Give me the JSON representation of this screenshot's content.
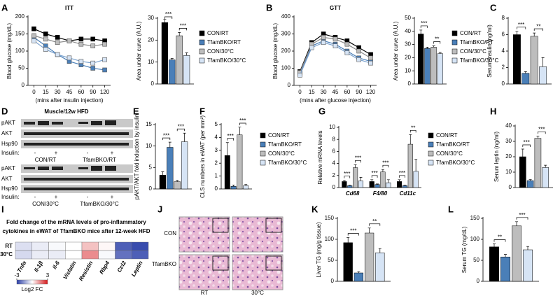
{
  "panels": [
    "A",
    "B",
    "C",
    "D",
    "E",
    "F",
    "G",
    "H",
    "I",
    "J",
    "K",
    "L"
  ],
  "chart_data": [
    {
      "type": "line",
      "title": "ITT",
      "ylabel": "Blood glucose (mg/dL)",
      "xlabel": "(mins after insulin injection)",
      "categories": [
        "0",
        "15",
        "30",
        "45",
        "60",
        "90",
        "120"
      ],
      "ylim": [
        0,
        200
      ],
      "yticks": [
        0,
        50,
        100,
        150,
        200
      ],
      "series": [
        {
          "name": "CON/RT",
          "color": "#000000",
          "values": [
            165,
            150,
            140,
            130,
            135,
            135,
            130
          ]
        },
        {
          "name": "TfamBKO/RT",
          "color": "#4a7fb8",
          "values": [
            140,
            115,
            90,
            70,
            60,
            50,
            45
          ]
        },
        {
          "name": "CON/30°C",
          "color": "#bdbdbd",
          "values": [
            145,
            135,
            125,
            130,
            120,
            115,
            120
          ]
        },
        {
          "name": "TfamBKO/30°C",
          "color": "#d6e4f5",
          "values": [
            130,
            105,
            90,
            80,
            70,
            65,
            75
          ]
        }
      ]
    },
    {
      "type": "bar",
      "ylabel": "Area under curve (A.U.)",
      "ylim": [
        0,
        30
      ],
      "yticks": [
        0,
        10,
        20,
        30
      ],
      "legend": true,
      "annotations": [
        "***",
        "***"
      ],
      "series": [
        {
          "name": "CON/RT",
          "color": "#000000",
          "values": [
            28
          ],
          "errors": [
            1.5
          ]
        },
        {
          "name": "TfamBKO/RT",
          "color": "#4a7fb8",
          "values": [
            11
          ],
          "errors": [
            0.6
          ]
        },
        {
          "name": "CON/30°C",
          "color": "#bdbdbd",
          "values": [
            22
          ],
          "errors": [
            1.5
          ]
        },
        {
          "name": "TfamBKO/30°C",
          "color": "#d6e4f5",
          "values": [
            13
          ],
          "errors": [
            1.2
          ]
        }
      ]
    },
    {
      "type": "line",
      "title": "GTT",
      "ylabel": "Blood glucose (mg/dL)",
      "xlabel": "(mins after glucose injection)",
      "categories": [
        "0",
        "15",
        "30",
        "45",
        "60",
        "90",
        "120"
      ],
      "ylim": [
        0,
        400
      ],
      "yticks": [
        0,
        100,
        200,
        300,
        400
      ],
      "series": [
        {
          "name": "CON/RT",
          "color": "#000000",
          "values": [
            80,
            250,
            300,
            280,
            260,
            220,
            180
          ]
        },
        {
          "name": "TfamBKO/RT",
          "color": "#4a7fb8",
          "values": [
            70,
            230,
            260,
            240,
            200,
            160,
            140
          ]
        },
        {
          "name": "CON/30°C",
          "color": "#bdbdbd",
          "values": [
            75,
            240,
            280,
            270,
            240,
            200,
            160
          ]
        },
        {
          "name": "TfamBKO/30°C",
          "color": "#d6e4f5",
          "values": [
            60,
            220,
            250,
            230,
            190,
            150,
            130
          ]
        }
      ]
    },
    {
      "type": "bar",
      "ylabel": "Area under curve (A.U.)",
      "ylim": [
        0,
        50
      ],
      "yticks": [
        0,
        10,
        20,
        30,
        40,
        50
      ],
      "legend": true,
      "annotations": [
        "***",
        "**"
      ],
      "series": [
        {
          "name": "CON/RT",
          "color": "#000000",
          "values": [
            38
          ],
          "errors": [
            3
          ]
        },
        {
          "name": "TfamBKO/RT",
          "color": "#4a7fb8",
          "values": [
            27
          ],
          "errors": [
            1
          ]
        },
        {
          "name": "CON/30°C",
          "color": "#bdbdbd",
          "values": [
            28
          ],
          "errors": [
            1
          ]
        },
        {
          "name": "TfamBKO/30°C",
          "color": "#d6e4f5",
          "values": [
            23
          ],
          "errors": [
            1
          ]
        }
      ]
    },
    {
      "type": "bar",
      "ylabel": "Serum insulin (ng/ml)",
      "ylim": [
        0,
        8
      ],
      "yticks": [
        0,
        2,
        4,
        6,
        8
      ],
      "legend": false,
      "annotations": [
        "***",
        "**"
      ],
      "series": [
        {
          "name": "CON/RT",
          "color": "#000000",
          "values": [
            6
          ],
          "errors": [
            0.4
          ]
        },
        {
          "name": "TfamBKO/RT",
          "color": "#4a7fb8",
          "values": [
            1.3
          ],
          "errors": [
            0.2
          ]
        },
        {
          "name": "CON/30°C",
          "color": "#bdbdbd",
          "values": [
            5.8
          ],
          "errors": [
            0.4
          ]
        },
        {
          "name": "TfamBKO/30°C",
          "color": "#d6e4f5",
          "values": [
            2.1
          ],
          "errors": [
            1.1
          ]
        }
      ]
    },
    {
      "type": "bar",
      "ylabel": "pAKT/AKT fold induction by insulin",
      "ylim": [
        0,
        15
      ],
      "yticks": [
        0,
        5,
        10,
        15
      ],
      "legend": false,
      "annotations": [
        "***",
        "***"
      ],
      "series": [
        {
          "name": "CON/RT",
          "color": "#000000",
          "values": [
            3.2
          ],
          "errors": [
            0.8
          ]
        },
        {
          "name": "TfamBKO/RT",
          "color": "#4a7fb8",
          "values": [
            9.7
          ],
          "errors": [
            1.2
          ]
        },
        {
          "name": "CON/30°C",
          "color": "#bdbdbd",
          "values": [
            1.7
          ],
          "errors": [
            0.3
          ]
        },
        {
          "name": "TfamBKO/30°C",
          "color": "#d6e4f5",
          "values": [
            11
          ],
          "errors": [
            2
          ]
        }
      ]
    },
    {
      "type": "bar",
      "ylabel": "CLS numbers in eWAT (per mm²)",
      "ylim": [
        0,
        5
      ],
      "yticks": [
        0,
        1,
        2,
        3,
        4,
        5
      ],
      "legend": true,
      "annotations": [
        "***",
        "***"
      ],
      "series": [
        {
          "name": "CON/RT",
          "color": "#000000",
          "values": [
            2.6
          ],
          "errors": [
            1
          ]
        },
        {
          "name": "TfamBKO/RT",
          "color": "#4a7fb8",
          "values": [
            0.2
          ],
          "errors": [
            0.1
          ]
        },
        {
          "name": "CON/30°C",
          "color": "#bdbdbd",
          "values": [
            4.2
          ],
          "errors": [
            0.6
          ]
        },
        {
          "name": "TfamBKO/30°C",
          "color": "#d6e4f5",
          "values": [
            0.25
          ],
          "errors": [
            0.1
          ]
        }
      ]
    },
    {
      "type": "bar",
      "ylabel": "Relative mRNA levels",
      "categories": [
        "Cd68",
        "F4/80",
        "Cd11c"
      ],
      "ylim": [
        0,
        10
      ],
      "yticks": [
        0,
        2,
        4,
        6,
        8,
        10
      ],
      "legend": true,
      "annotations": [
        "***",
        "***",
        "***",
        "***",
        "***",
        "**"
      ],
      "series": [
        {
          "name": "CON/RT",
          "color": "#000000",
          "values": [
            1,
            1,
            1
          ],
          "errors": [
            0.2,
            0.3,
            0.3
          ]
        },
        {
          "name": "TfamBKO/RT",
          "color": "#4a7fb8",
          "values": [
            0.3,
            0.5,
            0.3
          ],
          "errors": [
            0.1,
            0.1,
            0.1
          ]
        },
        {
          "name": "CON/30°C",
          "color": "#bdbdbd",
          "values": [
            3.3,
            2.6,
            7.2
          ],
          "errors": [
            0.5,
            0.4,
            1.6
          ]
        },
        {
          "name": "TfamBKO/30°C",
          "color": "#d6e4f5",
          "values": [
            1.1,
            0.8,
            2.7
          ],
          "errors": [
            0.6,
            0.5,
            2
          ]
        }
      ]
    },
    {
      "type": "bar",
      "ylabel": "Serum leptin (ng/ml)",
      "ylim": [
        0,
        40
      ],
      "yticks": [
        0,
        10,
        20,
        30,
        40
      ],
      "legend": false,
      "annotations": [
        "***",
        "***"
      ],
      "series": [
        {
          "name": "CON/RT",
          "color": "#000000",
          "values": [
            20
          ],
          "errors": [
            5
          ]
        },
        {
          "name": "TfamBKO/RT",
          "color": "#4a7fb8",
          "values": [
            4.5
          ],
          "errors": [
            0.7
          ]
        },
        {
          "name": "CON/30°C",
          "color": "#bdbdbd",
          "values": [
            32
          ],
          "errors": [
            1.5
          ]
        },
        {
          "name": "TfamBKO/30°C",
          "color": "#d6e4f5",
          "values": [
            13
          ],
          "errors": [
            1.5
          ]
        }
      ]
    },
    {
      "type": "heatmap",
      "title": [
        "Fold change of the mRNA levels of pro-inflammatory",
        "cytokines in eWAT of TfamBKO mice after 12-week HFD"
      ],
      "rows": [
        "RT",
        "30°C"
      ],
      "columns": [
        "Tnfα",
        "Il-1β",
        "Il-6",
        "Visfatin",
        "Resistin",
        "Rbp4",
        "Ccl2",
        "Leptin"
      ],
      "values": [
        [
          -0.5,
          -0.3,
          -0.1,
          0,
          0.8,
          0.1,
          -2.5,
          -2.8
        ],
        [
          -0.6,
          -0.3,
          -0.3,
          0,
          1.5,
          -0.1,
          -2.2,
          -2.5
        ]
      ],
      "zlim": [
        -3,
        3
      ],
      "zticks": [
        -3,
        3
      ],
      "zlabel": "Log2 FC"
    },
    {
      "type": "bar",
      "ylabel": "Liver TG (mg/g tissue)",
      "ylim": [
        0,
        150
      ],
      "yticks": [
        0,
        50,
        100,
        150
      ],
      "legend": false,
      "annotations": [
        "***",
        "**"
      ],
      "series": [
        {
          "name": "CON/RT",
          "color": "#000000",
          "values": [
            92
          ],
          "errors": [
            12
          ]
        },
        {
          "name": "TfamBKO/RT",
          "color": "#4a7fb8",
          "values": [
            20
          ],
          "errors": [
            3
          ]
        },
        {
          "name": "CON/30°C",
          "color": "#bdbdbd",
          "values": [
            115
          ],
          "errors": [
            12
          ]
        },
        {
          "name": "TfamBKO/30°C",
          "color": "#d6e4f5",
          "values": [
            68
          ],
          "errors": [
            10
          ]
        }
      ]
    },
    {
      "type": "bar",
      "ylabel": "Serum TG (mg/dL)",
      "ylim": [
        0,
        150
      ],
      "yticks": [
        0,
        50,
        100,
        150
      ],
      "legend": false,
      "annotations": [
        "**",
        "***"
      ],
      "series": [
        {
          "name": "CON/RT",
          "color": "#000000",
          "values": [
            82
          ],
          "errors": [
            7
          ]
        },
        {
          "name": "TfamBKO/RT",
          "color": "#4a7fb8",
          "values": [
            58
          ],
          "errors": [
            6
          ]
        },
        {
          "name": "CON/30°C",
          "color": "#bdbdbd",
          "values": [
            132
          ],
          "errors": [
            10
          ]
        },
        {
          "name": "TfamBKO/30°C",
          "color": "#d6e4f5",
          "values": [
            75
          ],
          "errors": [
            8
          ]
        }
      ]
    }
  ],
  "blot": {
    "title": "Muscle/12w HFD",
    "rows": [
      "pAKT",
      "AKT",
      "Hsp90",
      "Insulin:"
    ],
    "signs": [
      "-",
      "+"
    ],
    "groups": [
      "CON/RT",
      "TfamBKO/RT",
      "CON/30°C",
      "TfamBKO/30°C"
    ]
  },
  "histology": {
    "rows": [
      "CON",
      "TfamBKO"
    ],
    "columns": [
      "RT",
      "30°C"
    ]
  }
}
